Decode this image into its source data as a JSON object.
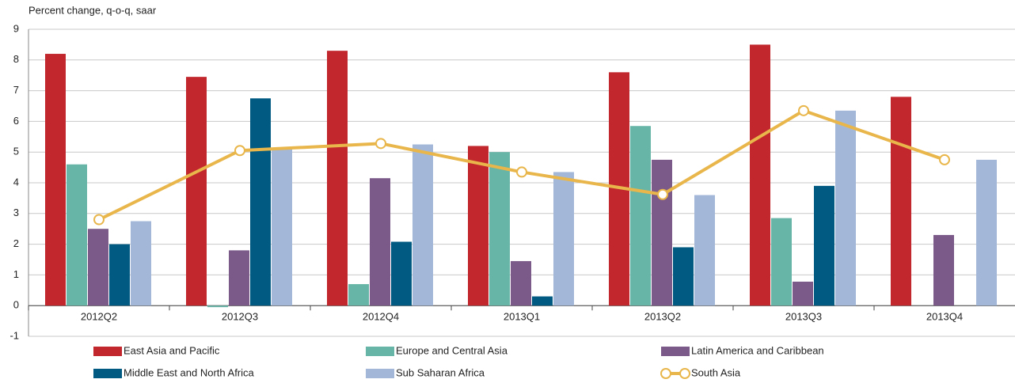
{
  "chart_data": {
    "type": "bar",
    "y_label": "Percent change, q-o-q, saar",
    "categories": [
      "2012Q2",
      "2012Q3",
      "2012Q4",
      "2013Q1",
      "2013Q2",
      "2013Q3",
      "2013Q4"
    ],
    "series": [
      {
        "name": "East Asia and Pacific",
        "color": "#c1272d",
        "values": [
          8.2,
          7.45,
          8.3,
          5.2,
          7.6,
          8.5,
          6.8
        ]
      },
      {
        "name": "Europe and Central Asia",
        "color": "#66b5a6",
        "values": [
          4.6,
          -0.05,
          0.7,
          5.0,
          5.85,
          2.85,
          null
        ]
      },
      {
        "name": "Latin America and Caribbean",
        "color": "#7b5a89",
        "values": [
          2.5,
          1.8,
          4.15,
          1.45,
          4.75,
          0.78,
          2.3
        ]
      },
      {
        "name": "Middle East and North Africa",
        "color": "#005a82",
        "values": [
          2.0,
          6.75,
          2.08,
          0.3,
          1.9,
          3.9,
          null
        ]
      },
      {
        "name": "Sub Saharan Africa",
        "color": "#a3b8d9",
        "values": [
          2.75,
          5.1,
          5.25,
          4.35,
          3.6,
          6.35,
          4.75
        ]
      },
      {
        "name": "South Asia",
        "color": "#e8b64a",
        "type": "line",
        "values": [
          2.8,
          5.05,
          5.28,
          4.35,
          3.62,
          6.35,
          4.75
        ]
      }
    ],
    "ylim": [
      -1,
      9
    ],
    "yticks": [
      -1,
      0,
      1,
      2,
      3,
      4,
      5,
      6,
      7,
      8,
      9
    ],
    "grid": true
  }
}
